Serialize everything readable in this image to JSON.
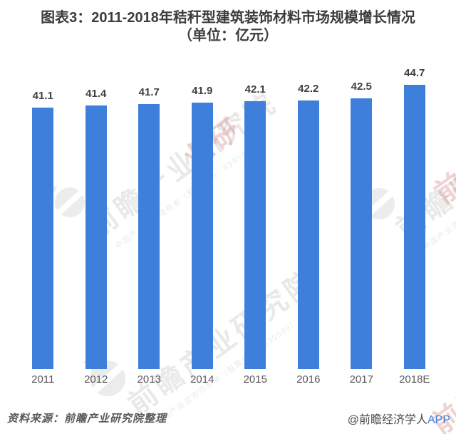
{
  "title": {
    "line1": "图表3：2011-2018年秸秆型建筑装饰材料市场规模增长情况",
    "line2": "（单位：亿元）"
  },
  "chart_data": {
    "type": "bar",
    "title": "图表3：2011-2018年秸秆型建筑装饰材料市场规模增长情况（单位：亿元）",
    "unit": "亿元",
    "categories": [
      "2011",
      "2012",
      "2013",
      "2014",
      "2015",
      "2016",
      "2017",
      "2018E"
    ],
    "values": [
      41.1,
      41.4,
      41.7,
      41.9,
      42.1,
      42.2,
      42.5,
      44.7
    ],
    "xlabel": "",
    "ylabel": "",
    "ylim": [
      0,
      45
    ],
    "grid": false,
    "legend": false,
    "data_labels": true,
    "bar_color": "#3e7fdc",
    "value_label_color": "#404040",
    "axis_label_color": "#595959"
  },
  "footer": {
    "source": "资料来源：前瞻产业研究院整理",
    "credit": "@前瞻经济学人",
    "credit_app": "APP"
  },
  "watermark": {
    "main": "前瞻产业研究院",
    "sub": "中国产业咨询领导者（股票代码：839599）"
  },
  "colors": {
    "bar_blue": "#3e7fdc",
    "title_text": "#3c3c3c",
    "gray_text": "#595959",
    "watermark_gray": "rgba(0,0,0,0.085)",
    "watermark_pink": "rgba(201,106,106,0.30)"
  }
}
